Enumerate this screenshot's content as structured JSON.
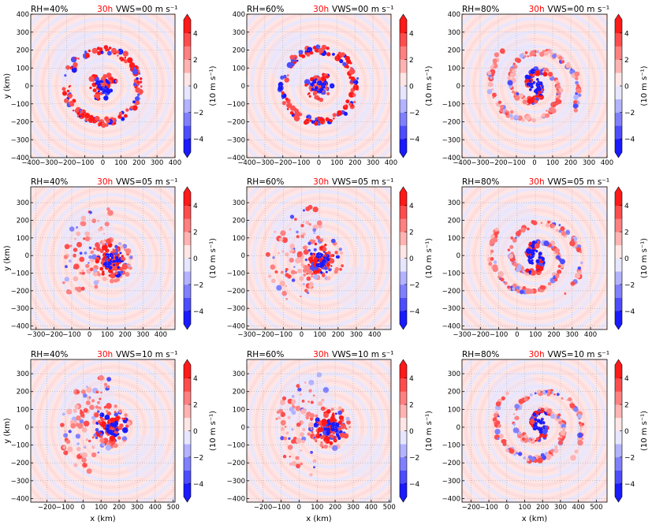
{
  "figure": {
    "time_label": "30h",
    "time_color": "#ff0000",
    "colorbar_label": "(10 m s⁻¹)",
    "colorbar_ticks": [
      "4",
      "2",
      "0",
      "−2",
      "−4"
    ],
    "colorbar_values": [
      4,
      2,
      0,
      -2,
      -4
    ],
    "colorbar_range": [
      -5,
      5
    ],
    "colors": {
      "pos": [
        "#ffe6e6",
        "#ffb3b3",
        "#ff8080",
        "#ff4d4d",
        "#ff1a1a"
      ],
      "neg": [
        "#e6e6ff",
        "#b3b3ff",
        "#8080ff",
        "#4d4dff",
        "#1a1aff"
      ],
      "axis": "#000000",
      "grid": "#aaaaaa"
    },
    "xlabel": "x (km)",
    "ylabel": "y (km)"
  },
  "chart_data": [
    {
      "type": "heatmap",
      "rh": "RH=40%",
      "vws": "VWS=00 m s⁻¹",
      "center": [
        0,
        0
      ],
      "pattern": "ring",
      "xlim": [
        -400,
        400
      ],
      "ylim": [
        -400,
        400
      ],
      "xticks": [
        "−400",
        "−300",
        "−200",
        "−100",
        "0",
        "100",
        "200",
        "300",
        "400"
      ],
      "xtick_values": [
        -400,
        -300,
        -200,
        -100,
        0,
        100,
        200,
        300,
        400
      ],
      "yticks": [
        "400",
        "300",
        "200",
        "100",
        "0",
        "−100",
        "−200",
        "−300",
        "−400"
      ],
      "ytick_values": [
        400,
        300,
        200,
        100,
        0,
        -100,
        -200,
        -300,
        -400
      ]
    },
    {
      "type": "heatmap",
      "rh": "RH=60%",
      "vws": "VWS=00 m s⁻¹",
      "center": [
        0,
        0
      ],
      "pattern": "ring",
      "xlim": [
        -400,
        400
      ],
      "ylim": [
        -400,
        400
      ],
      "xticks": [
        "−400",
        "−300",
        "−200",
        "−100",
        "0",
        "100",
        "200",
        "300",
        "400"
      ],
      "xtick_values": [
        -400,
        -300,
        -200,
        -100,
        0,
        100,
        200,
        300,
        400
      ],
      "yticks": [
        "400",
        "300",
        "200",
        "100",
        "0",
        "−100",
        "−200",
        "−300",
        "−400"
      ],
      "ytick_values": [
        400,
        300,
        200,
        100,
        0,
        -100,
        -200,
        -300,
        -400
      ]
    },
    {
      "type": "heatmap",
      "rh": "RH=80%",
      "vws": "VWS=00 m s⁻¹",
      "center": [
        0,
        0
      ],
      "pattern": "spiral",
      "xlim": [
        -400,
        400
      ],
      "ylim": [
        -400,
        400
      ],
      "xticks": [
        "−400",
        "−300",
        "−200",
        "−100",
        "0",
        "100",
        "200",
        "300",
        "400"
      ],
      "xtick_values": [
        -400,
        -300,
        -200,
        -100,
        0,
        100,
        200,
        300,
        400
      ],
      "yticks": [
        "400",
        "300",
        "200",
        "100",
        "0",
        "−100",
        "−200",
        "−300",
        "−400"
      ],
      "ytick_values": [
        400,
        300,
        200,
        100,
        0,
        -100,
        -200,
        -300,
        -400
      ]
    },
    {
      "type": "heatmap",
      "rh": "RH=40%",
      "vws": "VWS=05 m s⁻¹",
      "center": [
        120,
        -30
      ],
      "pattern": "sector",
      "xlim": [
        -330,
        480
      ],
      "ylim": [
        -420,
        390
      ],
      "xticks": [
        "−300",
        "−200",
        "−100",
        "0",
        "100",
        "200",
        "300",
        "400"
      ],
      "xtick_values": [
        -300,
        -200,
        -100,
        0,
        100,
        200,
        300,
        400
      ],
      "yticks": [
        "300",
        "200",
        "100",
        "0",
        "−100",
        "−200",
        "−300",
        "−400"
      ],
      "ytick_values": [
        300,
        200,
        100,
        0,
        -100,
        -200,
        -300,
        -400
      ]
    },
    {
      "type": "heatmap",
      "rh": "RH=60%",
      "vws": "VWS=05 m s⁻¹",
      "center": [
        110,
        -20
      ],
      "pattern": "sector",
      "xlim": [
        -300,
        490
      ],
      "ylim": [
        -420,
        390
      ],
      "xticks": [
        "−300",
        "−200",
        "−100",
        "0",
        "100",
        "200",
        "300",
        "400"
      ],
      "xtick_values": [
        -300,
        -200,
        -100,
        0,
        100,
        200,
        300,
        400
      ],
      "yticks": [
        "300",
        "200",
        "100",
        "0",
        "−100",
        "−200",
        "−300",
        "−400"
      ],
      "ytick_values": [
        300,
        200,
        100,
        0,
        -100,
        -200,
        -300,
        -400
      ]
    },
    {
      "type": "heatmap",
      "rh": "RH=80%",
      "vws": "VWS=05 m s⁻¹",
      "center": [
        100,
        -10
      ],
      "pattern": "spiral",
      "xlim": [
        -300,
        490
      ],
      "ylim": [
        -420,
        390
      ],
      "xticks": [
        "−300",
        "−200",
        "−100",
        "0",
        "100",
        "200",
        "300",
        "400"
      ],
      "xtick_values": [
        -300,
        -200,
        -100,
        0,
        100,
        200,
        300,
        400
      ],
      "yticks": [
        "300",
        "200",
        "100",
        "0",
        "−100",
        "−200",
        "−300",
        "−400"
      ],
      "ytick_values": [
        300,
        200,
        100,
        0,
        -100,
        -200,
        -300,
        -400
      ]
    },
    {
      "type": "heatmap",
      "rh": "RH=40%",
      "vws": "VWS=10 m s⁻¹",
      "center": [
        160,
        0
      ],
      "pattern": "sector",
      "xlim": [
        -290,
        510
      ],
      "ylim": [
        -420,
        380
      ],
      "xticks": [
        "−200",
        "−100",
        "0",
        "100",
        "200",
        "300",
        "400",
        "500"
      ],
      "xtick_values": [
        -200,
        -100,
        0,
        100,
        200,
        300,
        400,
        500
      ],
      "yticks": [
        "300",
        "200",
        "100",
        "0",
        "−100",
        "−200",
        "−300",
        "−400"
      ],
      "ytick_values": [
        300,
        200,
        100,
        0,
        -100,
        -200,
        -300,
        -400
      ]
    },
    {
      "type": "heatmap",
      "rh": "RH=60%",
      "vws": "VWS=10 m s⁻¹",
      "center": [
        170,
        0
      ],
      "pattern": "sector",
      "xlim": [
        -290,
        510
      ],
      "ylim": [
        -420,
        380
      ],
      "xticks": [
        "−200",
        "−100",
        "0",
        "100",
        "200",
        "300",
        "400",
        "500"
      ],
      "xtick_values": [
        -200,
        -100,
        0,
        100,
        200,
        300,
        400,
        500
      ],
      "yticks": [
        "300",
        "200",
        "100",
        "0",
        "−100",
        "−200",
        "−300",
        "−400"
      ],
      "ytick_values": [
        300,
        200,
        100,
        0,
        -100,
        -200,
        -300,
        -400
      ]
    },
    {
      "type": "heatmap",
      "rh": "RH=80%",
      "vws": "VWS=10 m s⁻¹",
      "center": [
        180,
        10
      ],
      "pattern": "spiral",
      "xlim": [
        -250,
        560
      ],
      "ylim": [
        -420,
        380
      ],
      "xticks": [
        "−200",
        "−100",
        "0",
        "100",
        "200",
        "300",
        "400",
        "500"
      ],
      "xtick_values": [
        -200,
        -100,
        0,
        100,
        200,
        300,
        400,
        500
      ],
      "yticks": [
        "300",
        "200",
        "100",
        "0",
        "−100",
        "−200",
        "−300",
        "−400"
      ],
      "ytick_values": [
        300,
        200,
        100,
        0,
        -100,
        -200,
        -300,
        -400
      ]
    }
  ]
}
